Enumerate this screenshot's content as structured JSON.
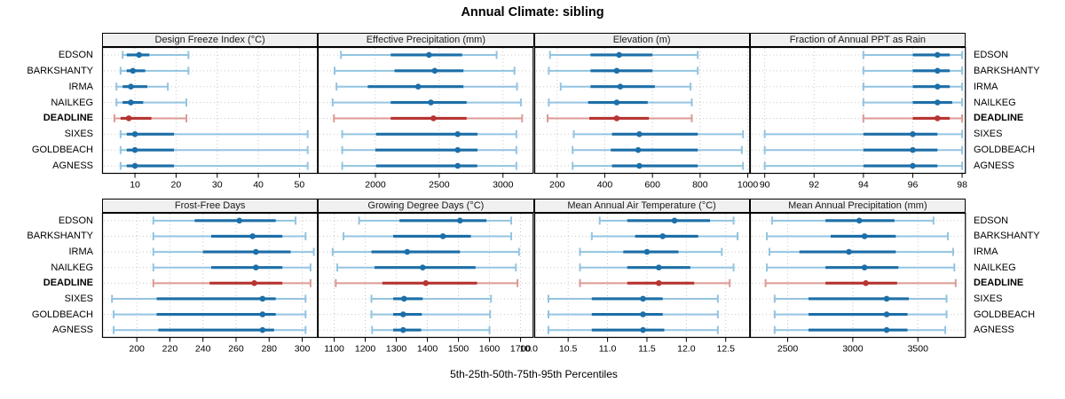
{
  "title": "Annual Climate: sibling",
  "caption": "5th-25th-50th-75th-95th Percentiles",
  "stations": [
    "EDSON",
    "BARKSHANTY",
    "IRMA",
    "NAILKEG",
    "DEADLINE",
    "SIXES",
    "GOLDBEACH",
    "AGNESS"
  ],
  "highlight_station": "DEADLINE",
  "colors": {
    "series_blue": "#1d6fa8",
    "series_blue_light": "#93c4e1",
    "highlight_red": "#b63533",
    "highlight_red_light": "#dc9a94",
    "grid": "#c8c8c8",
    "header_bg": "#f0f0f0",
    "border": "#000000"
  },
  "chart_data": {
    "type": "scatter",
    "variant": "horizontal-percentile-intervals",
    "percentiles": [
      5,
      25,
      50,
      75,
      95
    ],
    "legend": "none",
    "grid": "dotted",
    "panels": [
      {
        "label": "Design Freeze Index (°C)",
        "slug": "design-freeze-index",
        "xlim": [
          2,
          54.5
        ],
        "tick_values": [
          10,
          20,
          30,
          40,
          50
        ],
        "tick_labels": [
          "10",
          "20",
          "30",
          "40",
          "50"
        ],
        "series": [
          {
            "station": "EDSON",
            "values": [
              7,
              8,
              11,
              13.5,
              23
            ]
          },
          {
            "station": "BARKSHANTY",
            "values": [
              6.5,
              8,
              9.5,
              12.5,
              23
            ]
          },
          {
            "station": "IRMA",
            "values": [
              5.5,
              7,
              9,
              13,
              18
            ]
          },
          {
            "station": "NAILKEG",
            "values": [
              5.5,
              7,
              9,
              12,
              22.5
            ]
          },
          {
            "station": "DEADLINE",
            "values": [
              5,
              6.5,
              8.5,
              14,
              22.5
            ]
          },
          {
            "station": "SIXES",
            "values": [
              6.5,
              8,
              10,
              19.5,
              52
            ]
          },
          {
            "station": "GOLDBEACH",
            "values": [
              6.5,
              8,
              10,
              19.5,
              52
            ]
          },
          {
            "station": "AGNESS",
            "values": [
              6.5,
              8,
              10,
              19.5,
              52
            ]
          }
        ]
      },
      {
        "label": "Effective Precipitation (mm)",
        "slug": "effective-precipitation",
        "xlim": [
          1548,
          3240
        ],
        "tick_values": [
          2000,
          2500,
          3000
        ],
        "tick_labels": [
          "2000",
          "2500",
          "3000"
        ],
        "series": [
          {
            "station": "EDSON",
            "values": [
              1730,
              2120,
              2420,
              2680,
              2950
            ]
          },
          {
            "station": "BARKSHANTY",
            "values": [
              1680,
              2150,
              2465,
              2690,
              3090
            ]
          },
          {
            "station": "IRMA",
            "values": [
              1695,
              1940,
              2335,
              2690,
              3110
            ]
          },
          {
            "station": "NAILKEG",
            "values": [
              1665,
              2120,
              2435,
              2715,
              3140
            ]
          },
          {
            "station": "DEADLINE",
            "values": [
              1675,
              2120,
              2455,
              2715,
              3150
            ]
          },
          {
            "station": "SIXES",
            "values": [
              1740,
              2005,
              2645,
              2800,
              3105
            ]
          },
          {
            "station": "GOLDBEACH",
            "values": [
              1740,
              2000,
              2645,
              2800,
              3105
            ]
          },
          {
            "station": "AGNESS",
            "values": [
              1740,
              2005,
              2645,
              2798,
              3105
            ]
          }
        ]
      },
      {
        "label": "Elevation (m)",
        "slug": "elevation",
        "xlim": [
          104,
          1010
        ],
        "tick_values": [
          200,
          400,
          600,
          800,
          1000
        ],
        "tick_labels": [
          "200",
          "400",
          "600",
          "800",
          "1000"
        ],
        "series": [
          {
            "station": "EDSON",
            "values": [
              170,
              340,
              460,
              600,
              790
            ]
          },
          {
            "station": "BARKSHANTY",
            "values": [
              165,
              340,
              450,
              600,
              790
            ]
          },
          {
            "station": "IRMA",
            "values": [
              215,
              340,
              465,
              610,
              760
            ]
          },
          {
            "station": "NAILKEG",
            "values": [
              165,
              330,
              450,
              580,
              765
            ]
          },
          {
            "station": "DEADLINE",
            "values": [
              160,
              335,
              450,
              585,
              765
            ]
          },
          {
            "station": "SIXES",
            "values": [
              270,
              430,
              545,
              790,
              980
            ]
          },
          {
            "station": "GOLDBEACH",
            "values": [
              265,
              425,
              540,
              790,
              975
            ]
          },
          {
            "station": "AGNESS",
            "values": [
              265,
              430,
              545,
              790,
              980
            ]
          }
        ]
      },
      {
        "label": "Fraction of Annual PPT as Rain",
        "slug": "fraction-annual-ppt-rain",
        "xlim": [
          89.4,
          98.15
        ],
        "tick_values": [
          90,
          92,
          94,
          96,
          98
        ],
        "tick_labels": [
          "90",
          "92",
          "94",
          "96",
          "98"
        ],
        "series": [
          {
            "station": "EDSON",
            "values": [
              94,
              96,
              97,
              97.5,
              98
            ]
          },
          {
            "station": "BARKSHANTY",
            "values": [
              94,
              96,
              97,
              97.5,
              98
            ]
          },
          {
            "station": "IRMA",
            "values": [
              94,
              96,
              97,
              97.5,
              98
            ]
          },
          {
            "station": "NAILKEG",
            "values": [
              94,
              96,
              97,
              97.6,
              98
            ]
          },
          {
            "station": "DEADLINE",
            "values": [
              94,
              96,
              97,
              97.5,
              98
            ]
          },
          {
            "station": "SIXES",
            "values": [
              90,
              94,
              96,
              97,
              98
            ]
          },
          {
            "station": "GOLDBEACH",
            "values": [
              90,
              94,
              96,
              97,
              98
            ]
          },
          {
            "station": "AGNESS",
            "values": [
              90,
              94,
              96,
              97,
              98
            ]
          }
        ]
      },
      {
        "label": "Frost-Free Days",
        "slug": "frost-free-days",
        "xlim": [
          179,
          309.5
        ],
        "tick_values": [
          200,
          220,
          240,
          260,
          280,
          300
        ],
        "tick_labels": [
          "200",
          "220",
          "240",
          "260",
          "280",
          "300"
        ],
        "series": [
          {
            "station": "EDSON",
            "values": [
              210,
              235,
              262,
              284,
              296
            ]
          },
          {
            "station": "BARKSHANTY",
            "values": [
              210,
              245,
              270,
              288,
              302
            ]
          },
          {
            "station": "IRMA",
            "values": [
              210,
              240,
              272,
              293,
              307
            ]
          },
          {
            "station": "NAILKEG",
            "values": [
              210,
              245,
              272,
              288,
              305
            ]
          },
          {
            "station": "DEADLINE",
            "values": [
              210,
              244,
              271,
              288,
              305
            ]
          },
          {
            "station": "SIXES",
            "values": [
              185,
              212,
              276,
              284,
              302
            ]
          },
          {
            "station": "GOLDBEACH",
            "values": [
              186,
              212,
              276,
              284,
              302
            ]
          },
          {
            "station": "AGNESS",
            "values": [
              186,
              213,
              276,
              283,
              302
            ]
          }
        ]
      },
      {
        "label": "Growing Degree Days (°C)",
        "slug": "growing-degree-days",
        "xlim": [
          1047,
          1742
        ],
        "tick_values": [
          1100,
          1200,
          1300,
          1400,
          1500,
          1600,
          1700
        ],
        "tick_labels": [
          "1100",
          "1200",
          "1300",
          "1400",
          "1500",
          "1600",
          "1700"
        ],
        "series": [
          {
            "station": "EDSON",
            "values": [
              1180,
              1310,
              1505,
              1590,
              1670
            ]
          },
          {
            "station": "BARKSHANTY",
            "values": [
              1130,
              1290,
              1450,
              1540,
              1670
            ]
          },
          {
            "station": "IRMA",
            "values": [
              1095,
              1220,
              1335,
              1505,
              1695
            ]
          },
          {
            "station": "NAILKEG",
            "values": [
              1110,
              1230,
              1385,
              1555,
              1685
            ]
          },
          {
            "station": "DEADLINE",
            "values": [
              1105,
              1255,
              1395,
              1560,
              1690
            ]
          },
          {
            "station": "SIXES",
            "values": [
              1220,
              1290,
              1325,
              1385,
              1605
            ]
          },
          {
            "station": "GOLDBEACH",
            "values": [
              1220,
              1290,
              1322,
              1382,
              1602
            ]
          },
          {
            "station": "AGNESS",
            "values": [
              1222,
              1290,
              1322,
              1380,
              1600
            ]
          }
        ]
      },
      {
        "label": "Mean Annual Air Temperature (°C)",
        "slug": "mean-annual-air-temperature",
        "xlim": [
          10.07,
          12.81
        ],
        "tick_values": [
          10.0,
          10.5,
          11.0,
          11.5,
          12.0,
          12.5
        ],
        "tick_labels": [
          "10.0",
          "10.5",
          "11.0",
          "11.5",
          "12.0",
          "12.5"
        ],
        "series": [
          {
            "station": "EDSON",
            "values": [
              10.9,
              11.25,
              11.85,
              12.3,
              12.6
            ]
          },
          {
            "station": "BARKSHANTY",
            "values": [
              10.8,
              11.35,
              11.7,
              12.15,
              12.65
            ]
          },
          {
            "station": "IRMA",
            "values": [
              10.65,
              11.2,
              11.5,
              11.9,
              12.45
            ]
          },
          {
            "station": "NAILKEG",
            "values": [
              10.65,
              11.25,
              11.65,
              12.05,
              12.6
            ]
          },
          {
            "station": "DEADLINE",
            "values": [
              10.65,
              11.25,
              11.65,
              12.1,
              12.55
            ]
          },
          {
            "station": "SIXES",
            "values": [
              10.25,
              10.8,
              11.45,
              11.7,
              12.4
            ]
          },
          {
            "station": "GOLDBEACH",
            "values": [
              10.25,
              10.8,
              11.45,
              11.7,
              12.4
            ]
          },
          {
            "station": "AGNESS",
            "values": [
              10.25,
              10.8,
              11.45,
              11.72,
              12.4
            ]
          }
        ]
      },
      {
        "label": "Mean Annual Precipitation (mm)",
        "slug": "mean-annual-precipitation",
        "xlim": [
          2210,
          3868
        ],
        "tick_values": [
          2500,
          3000,
          3500
        ],
        "tick_labels": [
          "2500",
          "3000",
          "3500"
        ],
        "series": [
          {
            "station": "EDSON",
            "values": [
              2380,
              2790,
              3050,
              3320,
              3620
            ]
          },
          {
            "station": "BARKSHANTY",
            "values": [
              2340,
              2830,
              3090,
              3330,
              3730
            ]
          },
          {
            "station": "IRMA",
            "values": [
              2360,
              2590,
              2970,
              3330,
              3770
            ]
          },
          {
            "station": "NAILKEG",
            "values": [
              2340,
              2790,
              3090,
              3350,
              3780
            ]
          },
          {
            "station": "DEADLINE",
            "values": [
              2330,
              2790,
              3100,
              3340,
              3790
            ]
          },
          {
            "station": "SIXES",
            "values": [
              2400,
              2660,
              3260,
              3430,
              3720
            ]
          },
          {
            "station": "GOLDBEACH",
            "values": [
              2400,
              2660,
              3260,
              3420,
              3720
            ]
          },
          {
            "station": "AGNESS",
            "values": [
              2400,
              2660,
              3260,
              3420,
              3710
            ]
          }
        ]
      }
    ]
  }
}
